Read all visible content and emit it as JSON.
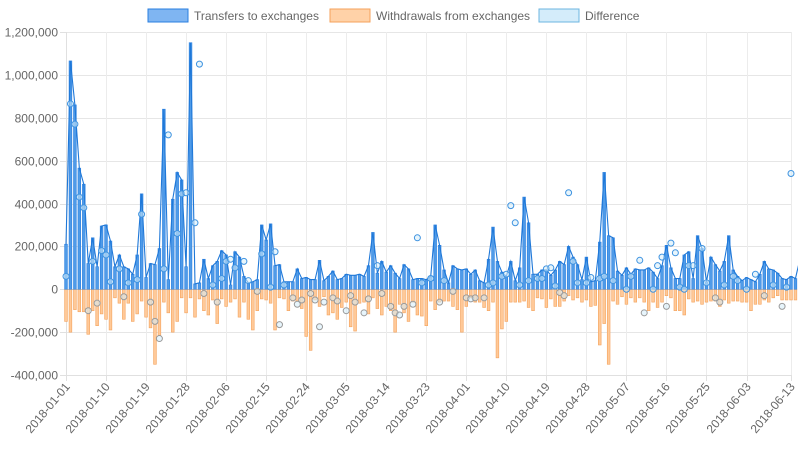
{
  "chart_data": {
    "type": "bar",
    "legend_position": "top",
    "grid": true,
    "legend": [
      {
        "name": "Transfers to exchanges",
        "fill": "#7fb5f2",
        "stroke": "#2a7fe0"
      },
      {
        "name": "Withdrawals from exchanges",
        "fill": "#ffd2a8",
        "stroke": "#f4a25b"
      },
      {
        "name": "Difference",
        "fill": "#d4ecfa",
        "stroke": "#6cb6e0"
      }
    ],
    "ylim": [
      -400000,
      1200000
    ],
    "yticks": [
      -400000,
      -200000,
      0,
      200000,
      400000,
      600000,
      800000,
      1000000,
      1200000
    ],
    "ytick_labels": [
      "-400,000",
      "-200,000",
      "0",
      "200,000",
      "400,000",
      "600,000",
      "800,000",
      "1,000,000",
      "1,200,000"
    ],
    "x_start": "2018-01-01",
    "x_end": "2018-06-13",
    "xtick_labels": [
      "2018-01-01",
      "2018-01-10",
      "2018-01-19",
      "2018-01-28",
      "2018-02-06",
      "2018-02-15",
      "2018-02-24",
      "2018-03-05",
      "2018-03-14",
      "2018-03-23",
      "2018-04-01",
      "2018-04-10",
      "2018-04-19",
      "2018-04-28",
      "2018-05-07",
      "2018-05-16",
      "2018-05-25",
      "2018-06-03",
      "2018-06-13"
    ],
    "series": [
      {
        "name": "Transfers to exchanges",
        "color": "#2a7fe0",
        "values": [
          210000,
          1065000,
          860000,
          565000,
          490000,
          120000,
          240000,
          105000,
          295000,
          300000,
          225000,
          105000,
          160000,
          105000,
          95000,
          70000,
          160000,
          445000,
          55000,
          120000,
          115000,
          190000,
          840000,
          45000,
          420000,
          545000,
          510000,
          105000,
          1150000,
          25000,
          30000,
          140000,
          50000,
          110000,
          130000,
          180000,
          160000,
          20000,
          175000,
          150000,
          60000,
          30000,
          35000,
          45000,
          300000,
          230000,
          305000,
          110000,
          115000,
          35000,
          35000,
          35000,
          95000,
          50000,
          55000,
          45000,
          45000,
          135000,
          40000,
          60000,
          85000,
          45000,
          50000,
          70000,
          65000,
          65000,
          70000,
          60000,
          110000,
          265000,
          75000,
          130000,
          80000,
          110000,
          75000,
          50000,
          115000,
          95000,
          45000,
          50000,
          50000,
          45000,
          60000,
          300000,
          205000,
          90000,
          30000,
          110000,
          95000,
          90000,
          95000,
          70000,
          90000,
          40000,
          30000,
          140000,
          290000,
          130000,
          80000,
          60000,
          130000,
          40000,
          100000,
          430000,
          310000,
          70000,
          70000,
          90000,
          90000,
          65000,
          90000,
          130000,
          115000,
          200000,
          150000,
          115000,
          45000,
          150000,
          35000,
          40000,
          220000,
          545000,
          250000,
          240000,
          85000,
          65000,
          100000,
          70000,
          95000,
          90000,
          90000,
          100000,
          80000,
          50000,
          110000,
          205000,
          100000,
          50000,
          50000,
          160000,
          175000,
          50000,
          250000,
          190000,
          35000,
          150000,
          115000,
          85000,
          130000,
          250000,
          90000,
          60000,
          40000,
          55000,
          45000,
          35000,
          70000,
          130000,
          95000,
          90000,
          75000,
          50000,
          45000,
          60000,
          50000,
          140000,
          140000,
          15000,
          150000,
          50000,
          90000,
          145000,
          625000
        ]
      },
      {
        "name": "Withdrawals from exchanges",
        "color": "#f4a25b",
        "values": [
          -150000,
          -200000,
          -95000,
          -105000,
          -105000,
          -210000,
          -100000,
          -170000,
          -115000,
          -140000,
          -190000,
          -40000,
          -65000,
          -140000,
          -65000,
          -150000,
          -115000,
          -55000,
          -130000,
          -180000,
          -350000,
          -215000,
          -60000,
          -110000,
          -200000,
          -150000,
          -40000,
          -110000,
          -40000,
          -130000,
          -45000,
          -100000,
          -120000,
          -50000,
          -160000,
          -45000,
          -80000,
          -60000,
          -45000,
          -130000,
          -60000,
          -140000,
          -190000,
          -100000,
          -45000,
          -50000,
          -65000,
          -190000,
          -40000,
          -45000,
          -100000,
          -55000,
          -55000,
          -90000,
          -220000,
          -285000,
          -50000,
          -80000,
          -35000,
          -120000,
          -110000,
          -140000,
          -85000,
          -60000,
          -175000,
          -195000,
          -65000,
          -60000,
          -115000,
          -40000,
          -90000,
          -120000,
          -80000,
          -100000,
          -200000,
          -70000,
          -110000,
          -150000,
          -60000,
          -120000,
          -125000,
          -170000,
          -55000,
          -95000,
          -60000,
          -55000,
          -55000,
          -80000,
          -95000,
          -200000,
          -80000,
          -40000,
          -60000,
          -60000,
          -85000,
          -100000,
          -60000,
          -320000,
          -185000,
          -150000,
          -60000,
          -60000,
          -60000,
          -55000,
          -85000,
          -100000,
          -40000,
          -45000,
          -85000,
          -45000,
          -80000,
          -80000,
          -55000,
          -30000,
          -50000,
          -40000,
          -60000,
          -50000,
          -80000,
          -75000,
          -260000,
          -160000,
          -350000,
          -55000,
          -70000,
          -35000,
          -70000,
          -40000,
          -60000,
          -40000,
          -60000,
          -100000,
          -60000,
          -85000,
          -60000,
          -30000,
          -40000,
          -100000,
          -100000,
          -120000,
          -45000,
          -60000,
          -55000,
          -70000,
          -60000,
          -55000,
          -55000,
          -80000,
          -50000,
          -65000,
          -55000,
          -55000,
          -60000,
          -60000,
          -100000,
          -70000,
          -70000,
          -50000,
          -60000,
          -40000,
          -30000,
          -50000,
          -50000,
          -50000,
          -50000,
          -60000,
          -60000,
          -50000,
          -60000,
          -60000,
          -110000,
          -70000,
          -70000,
          -90000,
          -105000,
          -130000,
          -100000,
          -85000
        ]
      }
    ],
    "difference_points": [
      {
        "date": "2018-01-01",
        "value": 60000
      },
      {
        "date": "2018-01-02",
        "value": 865000
      },
      {
        "date": "2018-01-03",
        "value": 770000
      },
      {
        "date": "2018-01-04",
        "value": 430000
      },
      {
        "date": "2018-01-05",
        "value": 380000
      },
      {
        "date": "2018-01-06",
        "value": -100000
      },
      {
        "date": "2018-01-07",
        "value": 130000
      },
      {
        "date": "2018-01-08",
        "value": -65000
      },
      {
        "date": "2018-01-09",
        "value": 180000
      },
      {
        "date": "2018-01-10",
        "value": 160000
      },
      {
        "date": "2018-01-11",
        "value": 35000
      },
      {
        "date": "2018-01-13",
        "value": 95000
      },
      {
        "date": "2018-01-14",
        "value": -35000
      },
      {
        "date": "2018-01-15",
        "value": 30000
      },
      {
        "date": "2018-01-17",
        "value": 45000
      },
      {
        "date": "2018-01-18",
        "value": 350000
      },
      {
        "date": "2018-01-20",
        "value": -60000
      },
      {
        "date": "2018-01-21",
        "value": -150000
      },
      {
        "date": "2018-01-22",
        "value": -230000
      },
      {
        "date": "2018-01-23",
        "value": 95000
      },
      {
        "date": "2018-01-24",
        "value": 720000
      },
      {
        "date": "2018-01-26",
        "value": 260000
      },
      {
        "date": "2018-01-27",
        "value": 445000
      },
      {
        "date": "2018-01-28",
        "value": 450000
      },
      {
        "date": "2018-01-30",
        "value": 310000
      },
      {
        "date": "2018-01-31",
        "value": 1050000
      },
      {
        "date": "2018-02-01",
        "value": -20000
      },
      {
        "date": "2018-02-03",
        "value": 20000
      },
      {
        "date": "2018-02-04",
        "value": -60000
      },
      {
        "date": "2018-02-05",
        "value": 50000
      },
      {
        "date": "2018-02-06",
        "value": 130000
      },
      {
        "date": "2018-02-07",
        "value": 140000
      },
      {
        "date": "2018-02-08",
        "value": 100000
      },
      {
        "date": "2018-02-10",
        "value": 130000
      },
      {
        "date": "2018-02-11",
        "value": 40000
      },
      {
        "date": "2018-02-13",
        "value": -10000
      },
      {
        "date": "2018-02-14",
        "value": 165000
      },
      {
        "date": "2018-02-16",
        "value": 10000
      },
      {
        "date": "2018-02-17",
        "value": 175000
      },
      {
        "date": "2018-02-18",
        "value": -165000
      },
      {
        "date": "2018-02-19",
        "value": 20000
      },
      {
        "date": "2018-02-21",
        "value": -40000
      },
      {
        "date": "2018-02-22",
        "value": -70000
      },
      {
        "date": "2018-02-23",
        "value": -50000
      },
      {
        "date": "2018-02-25",
        "value": -20000
      },
      {
        "date": "2018-02-26",
        "value": -50000
      },
      {
        "date": "2018-02-27",
        "value": -175000
      },
      {
        "date": "2018-02-28",
        "value": -60000
      },
      {
        "date": "2018-03-02",
        "value": -40000
      },
      {
        "date": "2018-03-03",
        "value": -55000
      },
      {
        "date": "2018-03-05",
        "value": -100000
      },
      {
        "date": "2018-03-06",
        "value": -30000
      },
      {
        "date": "2018-03-07",
        "value": -60000
      },
      {
        "date": "2018-03-09",
        "value": -110000
      },
      {
        "date": "2018-03-10",
        "value": -45000
      },
      {
        "date": "2018-03-12",
        "value": 110000
      },
      {
        "date": "2018-03-13",
        "value": -20000
      },
      {
        "date": "2018-03-15",
        "value": -80000
      },
      {
        "date": "2018-03-16",
        "value": -110000
      },
      {
        "date": "2018-03-17",
        "value": -120000
      },
      {
        "date": "2018-03-18",
        "value": -80000
      },
      {
        "date": "2018-03-20",
        "value": -70000
      },
      {
        "date": "2018-03-21",
        "value": 240000
      },
      {
        "date": "2018-03-22",
        "value": 30000
      },
      {
        "date": "2018-03-24",
        "value": 50000
      },
      {
        "date": "2018-03-26",
        "value": -60000
      },
      {
        "date": "2018-03-27",
        "value": 40000
      },
      {
        "date": "2018-03-29",
        "value": -10000
      },
      {
        "date": "2018-04-01",
        "value": -40000
      },
      {
        "date": "2018-04-02",
        "value": -45000
      },
      {
        "date": "2018-04-03",
        "value": -40000
      },
      {
        "date": "2018-04-05",
        "value": -40000
      },
      {
        "date": "2018-04-06",
        "value": 20000
      },
      {
        "date": "2018-04-07",
        "value": 30000
      },
      {
        "date": "2018-04-09",
        "value": 60000
      },
      {
        "date": "2018-04-10",
        "value": 70000
      },
      {
        "date": "2018-04-11",
        "value": 390000
      },
      {
        "date": "2018-04-12",
        "value": 310000
      },
      {
        "date": "2018-04-13",
        "value": 20000
      },
      {
        "date": "2018-04-15",
        "value": 40000
      },
      {
        "date": "2018-04-17",
        "value": 50000
      },
      {
        "date": "2018-04-18",
        "value": 50000
      },
      {
        "date": "2018-04-19",
        "value": 95000
      },
      {
        "date": "2018-04-20",
        "value": 100000
      },
      {
        "date": "2018-04-21",
        "value": 15000
      },
      {
        "date": "2018-04-22",
        "value": -15000
      },
      {
        "date": "2018-04-23",
        "value": -30000
      },
      {
        "date": "2018-04-24",
        "value": 450000
      },
      {
        "date": "2018-04-25",
        "value": 130000
      },
      {
        "date": "2018-04-26",
        "value": 30000
      },
      {
        "date": "2018-04-28",
        "value": 30000
      },
      {
        "date": "2018-04-29",
        "value": 55000
      },
      {
        "date": "2018-05-01",
        "value": 50000
      },
      {
        "date": "2018-05-02",
        "value": 60000
      },
      {
        "date": "2018-05-04",
        "value": 40000
      },
      {
        "date": "2018-05-07",
        "value": 0
      },
      {
        "date": "2018-05-08",
        "value": 60000
      },
      {
        "date": "2018-05-10",
        "value": 135000
      },
      {
        "date": "2018-05-11",
        "value": -110000
      },
      {
        "date": "2018-05-13",
        "value": 0
      },
      {
        "date": "2018-05-14",
        "value": 110000
      },
      {
        "date": "2018-05-15",
        "value": 150000
      },
      {
        "date": "2018-05-16",
        "value": -80000
      },
      {
        "date": "2018-05-17",
        "value": 215000
      },
      {
        "date": "2018-05-18",
        "value": 170000
      },
      {
        "date": "2018-05-19",
        "value": 10000
      },
      {
        "date": "2018-05-20",
        "value": 0
      },
      {
        "date": "2018-05-21",
        "value": 110000
      },
      {
        "date": "2018-05-22",
        "value": 110000
      },
      {
        "date": "2018-05-24",
        "value": 190000
      },
      {
        "date": "2018-05-25",
        "value": 30000
      },
      {
        "date": "2018-05-27",
        "value": -40000
      },
      {
        "date": "2018-05-28",
        "value": -60000
      },
      {
        "date": "2018-05-29",
        "value": 20000
      },
      {
        "date": "2018-05-31",
        "value": 60000
      },
      {
        "date": "2018-06-01",
        "value": 40000
      },
      {
        "date": "2018-06-03",
        "value": 0
      },
      {
        "date": "2018-06-05",
        "value": 70000
      },
      {
        "date": "2018-06-07",
        "value": -30000
      },
      {
        "date": "2018-06-09",
        "value": 20000
      },
      {
        "date": "2018-06-11",
        "value": -80000
      },
      {
        "date": "2018-06-12",
        "value": 10000
      },
      {
        "date": "2018-06-13",
        "value": 540000
      }
    ]
  }
}
